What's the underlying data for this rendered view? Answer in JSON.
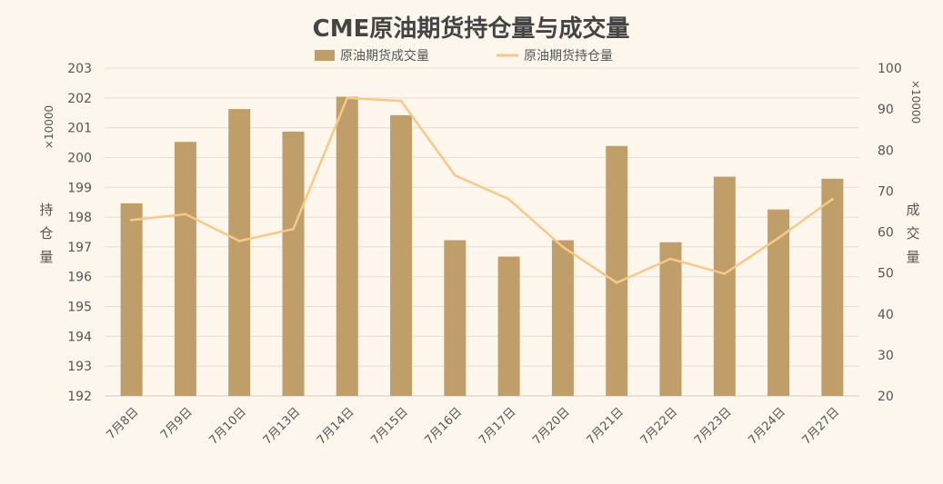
{
  "chart_data": {
    "type": "bar",
    "title": "CME原油期货持仓量与成交量",
    "categories": [
      "7月8日",
      "7月9日",
      "7月10日",
      "7月13日",
      "7月14日",
      "7月15日",
      "7月16日",
      "7月17日",
      "7月20日",
      "7月21日",
      "7月22日",
      "7月23日",
      "7月24日",
      "7月27日"
    ],
    "series": [
      {
        "name": "原油期货成交量",
        "type": "bar",
        "axis": "right",
        "values": [
          67,
          82,
          90,
          84.5,
          93,
          88.5,
          58,
          54,
          58,
          81,
          57.5,
          73.5,
          65.5,
          73
        ]
      },
      {
        "name": "原油期货持仓量",
        "type": "line",
        "axis": "left",
        "values": [
          197.9,
          198.1,
          197.2,
          197.6,
          202.0,
          201.9,
          199.4,
          198.6,
          197.0,
          195.8,
          196.6,
          196.1,
          197.3,
          198.6
        ]
      }
    ],
    "left_axis": {
      "label": "持仓量",
      "unit": "×10000",
      "ylim": [
        192,
        203
      ],
      "ticks": [
        "192",
        "193",
        "194",
        "195",
        "196",
        "197",
        "198",
        "199",
        "200",
        "201",
        "202",
        "203"
      ]
    },
    "right_axis": {
      "label": "成交量",
      "unit": "×10000",
      "ylim": [
        20,
        100
      ],
      "ticks": [
        "20",
        "30",
        "40",
        "50",
        "60",
        "70",
        "80",
        "90",
        "100"
      ]
    },
    "colors": {
      "bar": "#bf9e6a",
      "line": "#f7c888",
      "background": "#fdf6ec"
    },
    "legend_position": "top-center",
    "grid": true
  }
}
